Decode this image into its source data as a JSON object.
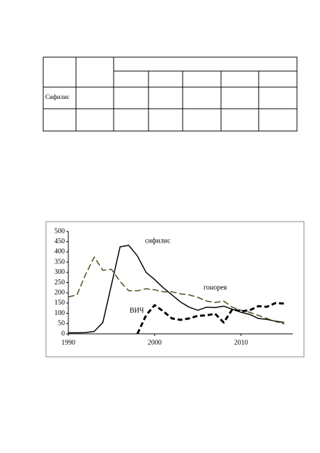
{
  "table": {
    "row_label": "Сифилис"
  },
  "chart_data": {
    "type": "line",
    "x": [
      1990,
      1991,
      1992,
      1993,
      1994,
      1995,
      1996,
      1997,
      1998,
      1999,
      2000,
      2001,
      2002,
      2003,
      2004,
      2005,
      2006,
      2007,
      2008,
      2009,
      2010,
      2011,
      2012,
      2013,
      2014,
      2015
    ],
    "series": [
      {
        "name": "сифилис",
        "color": "#000000",
        "style": "solid",
        "line_width": 1.5,
        "values": [
          5,
          5,
          6,
          12,
          55,
          240,
          425,
          432,
          380,
          300,
          265,
          225,
          190,
          155,
          130,
          115,
          130,
          128,
          135,
          120,
          105,
          95,
          75,
          70,
          62,
          55
        ]
      },
      {
        "name": "гонорея",
        "color": "#4d4d1a",
        "style": "dashed",
        "line_width": 1.5,
        "values": [
          180,
          190,
          290,
          375,
          310,
          315,
          255,
          210,
          210,
          220,
          215,
          205,
          205,
          195,
          190,
          178,
          160,
          153,
          160,
          130,
          115,
          105,
          90,
          75,
          60,
          48
        ]
      },
      {
        "name": "ВИЧ",
        "color": "#000000",
        "style": "dashed",
        "line_width": 3,
        "values": [
          null,
          null,
          null,
          null,
          null,
          null,
          null,
          null,
          0,
          90,
          140,
          110,
          75,
          68,
          75,
          88,
          90,
          98,
          55,
          120,
          110,
          115,
          135,
          132,
          150,
          148
        ]
      }
    ],
    "xlim": [
      1990,
      2016
    ],
    "xticks": [
      1990,
      2000,
      2010
    ],
    "ylim": [
      0,
      500
    ],
    "yticks": [
      0,
      50,
      100,
      150,
      200,
      250,
      300,
      350,
      400,
      450,
      500
    ]
  }
}
